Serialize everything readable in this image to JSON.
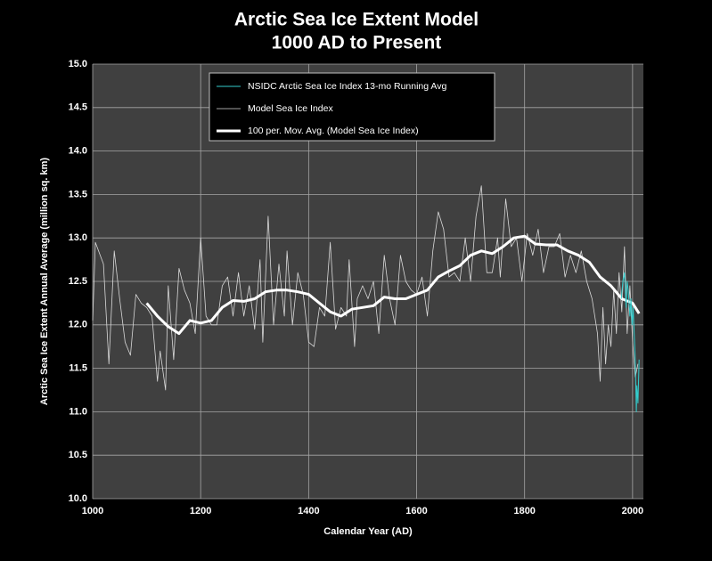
{
  "chart_data": {
    "type": "line",
    "title": "Arctic Sea Ice Extent Model",
    "subtitle": "1000 AD to Present",
    "x_label": "Calendar Year (AD)",
    "y_label": "Arctic Sea Ice Extent Annual Average (million sq. km)",
    "xlim": [
      1000,
      2020
    ],
    "ylim": [
      10.0,
      15.0
    ],
    "xticks": [
      1000,
      1200,
      1400,
      1600,
      1800,
      2000
    ],
    "yticks": [
      {
        "value": 10.0,
        "label": "10.0"
      },
      {
        "value": 10.5,
        "label": "10.5"
      },
      {
        "value": 11.0,
        "label": "11.0"
      },
      {
        "value": 11.5,
        "label": "11.5"
      },
      {
        "value": 12.0,
        "label": "12.0"
      },
      {
        "value": 12.5,
        "label": "12.5"
      },
      {
        "value": 13.0,
        "label": "13.0"
      },
      {
        "value": 13.5,
        "label": "13.5"
      },
      {
        "value": 14.0,
        "label": "14.0"
      },
      {
        "value": 14.5,
        "label": "14.5"
      },
      {
        "value": 15.0,
        "label": "15.0"
      }
    ],
    "grid": true,
    "legend": "top",
    "series": [
      {
        "name": "NSIDC Arctic Sea Ice Index 13-mo Running Avg",
        "color": "#33cccc",
        "line_width": 1,
        "x": [
          1979,
          1982,
          1985,
          1988,
          1990,
          1992,
          1995,
          1997,
          1999,
          2001,
          2003,
          2005,
          2007,
          2008,
          2010,
          2012
        ],
        "values": [
          12.3,
          12.5,
          12.6,
          12.2,
          12.5,
          12.4,
          12.1,
          12.3,
          12.0,
          12.2,
          11.9,
          11.6,
          11.0,
          11.3,
          11.1,
          11.6
        ]
      },
      {
        "name": "Model Sea Ice Index",
        "color": "#d9d9d9",
        "line_width": 0.8,
        "x": [
          1000,
          1005,
          1020,
          1030,
          1040,
          1050,
          1060,
          1070,
          1080,
          1090,
          1100,
          1110,
          1120,
          1125,
          1135,
          1140,
          1150,
          1160,
          1170,
          1180,
          1190,
          1200,
          1210,
          1220,
          1230,
          1240,
          1250,
          1260,
          1270,
          1280,
          1290,
          1300,
          1310,
          1315,
          1325,
          1335,
          1345,
          1355,
          1360,
          1370,
          1380,
          1390,
          1400,
          1410,
          1420,
          1430,
          1440,
          1450,
          1460,
          1470,
          1475,
          1485,
          1490,
          1500,
          1510,
          1520,
          1530,
          1540,
          1550,
          1560,
          1570,
          1580,
          1590,
          1600,
          1610,
          1620,
          1630,
          1640,
          1650,
          1660,
          1670,
          1680,
          1690,
          1700,
          1710,
          1720,
          1730,
          1740,
          1750,
          1755,
          1765,
          1775,
          1785,
          1795,
          1805,
          1815,
          1825,
          1835,
          1845,
          1855,
          1865,
          1875,
          1885,
          1895,
          1905,
          1915,
          1925,
          1935,
          1940,
          1945,
          1950,
          1955,
          1960,
          1965,
          1970,
          1975,
          1980,
          1985,
          1990,
          1995,
          2000,
          2005,
          2010
        ],
        "values": [
          12.05,
          12.95,
          12.7,
          11.55,
          12.85,
          12.3,
          11.8,
          11.65,
          12.35,
          12.25,
          12.2,
          12.1,
          11.35,
          11.7,
          11.25,
          12.45,
          11.6,
          12.65,
          12.4,
          12.25,
          11.9,
          13.0,
          12.1,
          12.0,
          12.0,
          12.45,
          12.55,
          12.1,
          12.6,
          12.1,
          12.45,
          11.95,
          12.75,
          11.8,
          13.25,
          12.0,
          12.7,
          12.1,
          12.85,
          12.0,
          12.6,
          12.35,
          11.8,
          11.75,
          12.2,
          12.1,
          12.95,
          11.95,
          12.2,
          12.1,
          12.75,
          11.75,
          12.3,
          12.45,
          12.3,
          12.5,
          11.9,
          12.8,
          12.3,
          12.0,
          12.8,
          12.5,
          12.4,
          12.35,
          12.55,
          12.1,
          12.85,
          13.3,
          13.1,
          12.55,
          12.6,
          12.5,
          13.0,
          12.5,
          13.25,
          13.6,
          12.6,
          12.6,
          13.0,
          12.55,
          13.45,
          12.9,
          13.0,
          12.5,
          13.05,
          12.8,
          13.1,
          12.6,
          12.9,
          12.9,
          13.05,
          12.55,
          12.8,
          12.6,
          12.85,
          12.5,
          12.3,
          11.9,
          11.35,
          12.2,
          11.55,
          12.0,
          11.75,
          12.4,
          11.9,
          12.6,
          12.15,
          12.9,
          11.9,
          12.45,
          11.8,
          11.4,
          11.55
        ]
      },
      {
        "name": "100 per. Mov. Avg. (Model Sea Ice Index)",
        "color": "#ffffff",
        "line_width": 3,
        "x": [
          1100,
          1120,
          1140,
          1160,
          1180,
          1200,
          1220,
          1240,
          1260,
          1280,
          1300,
          1320,
          1340,
          1360,
          1380,
          1400,
          1420,
          1440,
          1460,
          1480,
          1500,
          1520,
          1540,
          1560,
          1580,
          1600,
          1620,
          1640,
          1660,
          1680,
          1700,
          1720,
          1740,
          1760,
          1780,
          1800,
          1820,
          1840,
          1860,
          1880,
          1900,
          1920,
          1940,
          1960,
          1980,
          2000,
          2012
        ],
        "values": [
          12.25,
          12.1,
          11.98,
          11.9,
          12.05,
          12.02,
          12.05,
          12.2,
          12.28,
          12.27,
          12.3,
          12.38,
          12.4,
          12.4,
          12.38,
          12.35,
          12.25,
          12.15,
          12.1,
          12.18,
          12.2,
          12.22,
          12.32,
          12.3,
          12.3,
          12.35,
          12.4,
          12.55,
          12.62,
          12.68,
          12.8,
          12.85,
          12.82,
          12.9,
          13.0,
          13.02,
          12.93,
          12.92,
          12.92,
          12.85,
          12.8,
          12.72,
          12.55,
          12.45,
          12.3,
          12.25,
          12.13
        ]
      }
    ]
  }
}
